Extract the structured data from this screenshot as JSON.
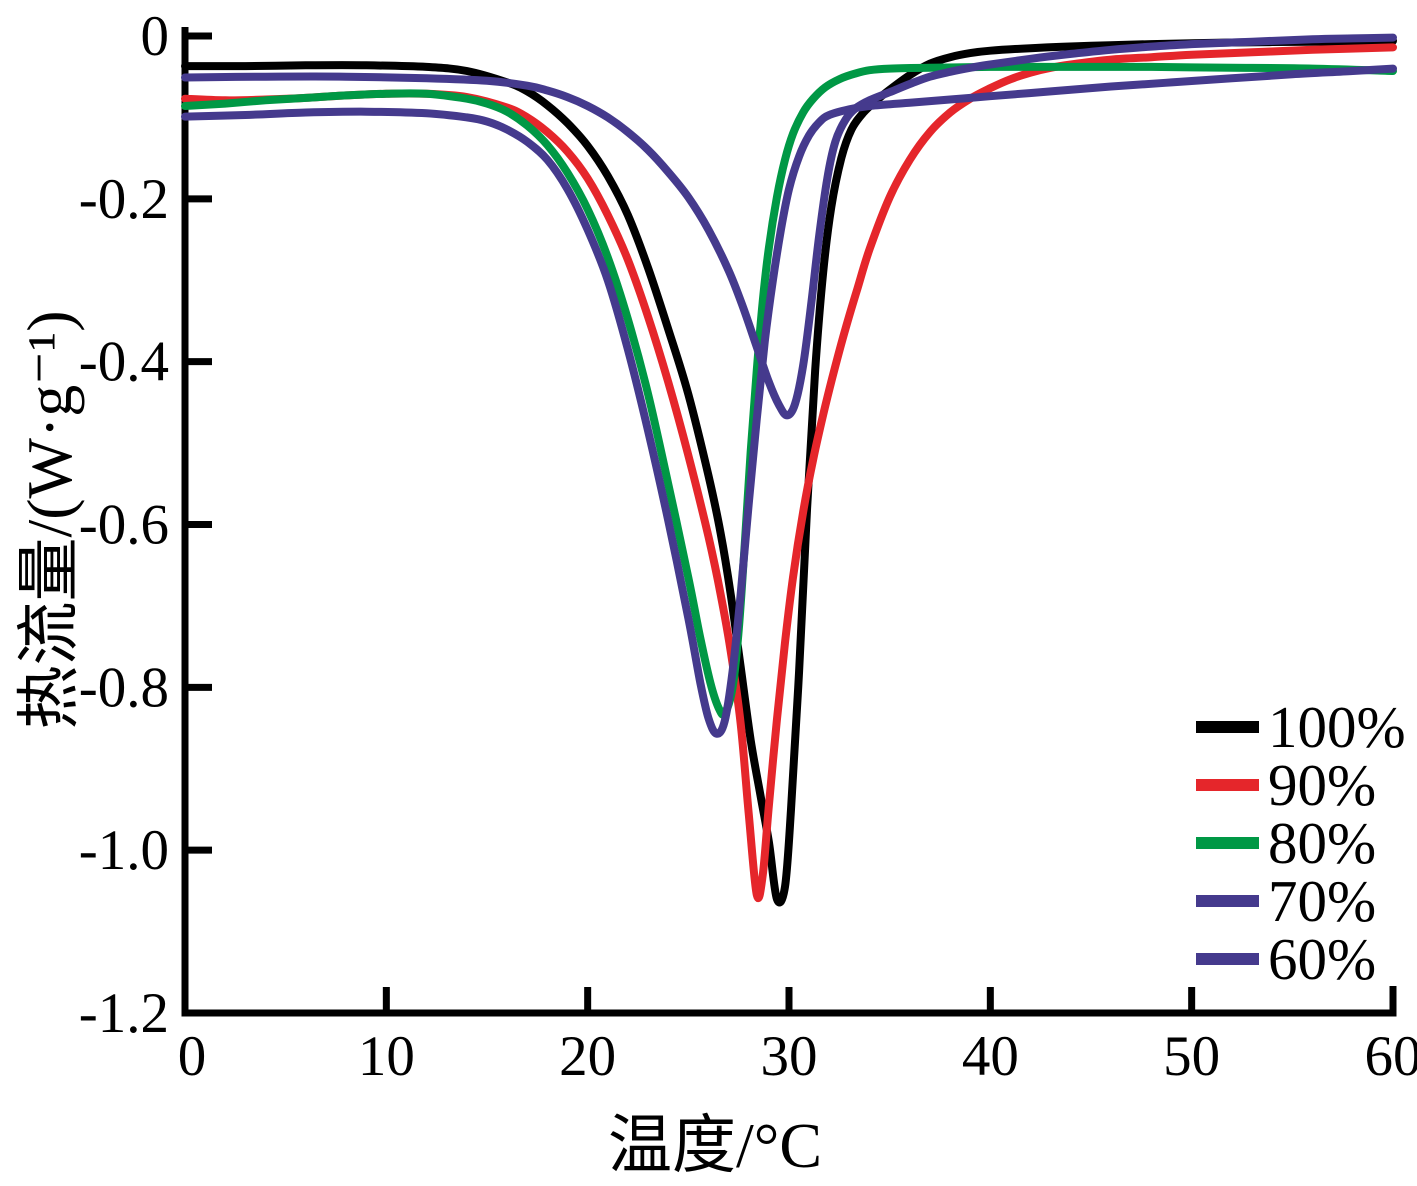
{
  "chart_data": {
    "type": "line",
    "title": "",
    "xlabel": "温度/°C",
    "ylabel": "热流量/(W·g⁻¹)",
    "xlim": [
      0,
      60
    ],
    "ylim": [
      -1.2,
      0
    ],
    "xticks": [
      0,
      10,
      20,
      30,
      40,
      50,
      60
    ],
    "yticks": [
      0,
      -0.2,
      -0.4,
      -0.6,
      -0.8,
      -1.0,
      -1.2
    ],
    "ytick_labels": [
      "0",
      "-0.2",
      "-0.4",
      "-0.6",
      "-0.8",
      "-1.0",
      "-1.2"
    ],
    "grid": false,
    "legend_position": "lower right",
    "axis_color": "#000000",
    "series": [
      {
        "name": "100%",
        "color": "#000000",
        "peak_temp_c": 29.4,
        "peak_heatflow": -1.06,
        "points": [
          [
            0,
            -0.037
          ],
          [
            3,
            -0.037
          ],
          [
            6,
            -0.036
          ],
          [
            9,
            -0.036
          ],
          [
            12,
            -0.038
          ],
          [
            14,
            -0.043
          ],
          [
            16,
            -0.057
          ],
          [
            17,
            -0.068
          ],
          [
            18,
            -0.085
          ],
          [
            19,
            -0.107
          ],
          [
            20,
            -0.135
          ],
          [
            21,
            -0.172
          ],
          [
            22,
            -0.22
          ],
          [
            23,
            -0.285
          ],
          [
            24,
            -0.36
          ],
          [
            25,
            -0.44
          ],
          [
            26,
            -0.54
          ],
          [
            26.6,
            -0.61
          ],
          [
            27.1,
            -0.685
          ],
          [
            27.6,
            -0.775
          ],
          [
            28.1,
            -0.865
          ],
          [
            28.6,
            -0.935
          ],
          [
            29.0,
            -0.99
          ],
          [
            29.4,
            -1.06
          ],
          [
            29.8,
            -1.045
          ],
          [
            30.1,
            -0.95
          ],
          [
            30.5,
            -0.78
          ],
          [
            30.9,
            -0.58
          ],
          [
            31.3,
            -0.41
          ],
          [
            31.7,
            -0.29
          ],
          [
            32.1,
            -0.21
          ],
          [
            32.6,
            -0.15
          ],
          [
            33.1,
            -0.115
          ],
          [
            33.7,
            -0.094
          ],
          [
            34.4,
            -0.078
          ],
          [
            35,
            -0.066
          ],
          [
            36,
            -0.048
          ],
          [
            37,
            -0.034
          ],
          [
            38,
            -0.026
          ],
          [
            39,
            -0.021
          ],
          [
            40,
            -0.018
          ],
          [
            42,
            -0.015
          ],
          [
            45,
            -0.012
          ],
          [
            48,
            -0.01
          ],
          [
            52,
            -0.008
          ],
          [
            56,
            -0.007
          ],
          [
            60,
            -0.006
          ]
        ]
      },
      {
        "name": "90%",
        "color": "#e5262b",
        "peak_temp_c": 28.4,
        "peak_heatflow": -1.06,
        "points": [
          [
            0,
            -0.077
          ],
          [
            2,
            -0.079
          ],
          [
            4,
            -0.078
          ],
          [
            6,
            -0.076
          ],
          [
            8,
            -0.073
          ],
          [
            10,
            -0.071
          ],
          [
            12,
            -0.071
          ],
          [
            14,
            -0.075
          ],
          [
            16,
            -0.088
          ],
          [
            17,
            -0.1
          ],
          [
            18,
            -0.118
          ],
          [
            19,
            -0.142
          ],
          [
            20,
            -0.175
          ],
          [
            21,
            -0.22
          ],
          [
            22,
            -0.275
          ],
          [
            23,
            -0.345
          ],
          [
            24,
            -0.425
          ],
          [
            25,
            -0.515
          ],
          [
            26,
            -0.615
          ],
          [
            26.6,
            -0.685
          ],
          [
            27.1,
            -0.755
          ],
          [
            27.6,
            -0.845
          ],
          [
            28.0,
            -0.955
          ],
          [
            28.4,
            -1.055
          ],
          [
            28.7,
            -1.03
          ],
          [
            29.0,
            -0.945
          ],
          [
            29.4,
            -0.84
          ],
          [
            29.8,
            -0.745
          ],
          [
            30.2,
            -0.665
          ],
          [
            30.7,
            -0.585
          ],
          [
            31.2,
            -0.52
          ],
          [
            31.7,
            -0.465
          ],
          [
            32.2,
            -0.415
          ],
          [
            32.8,
            -0.36
          ],
          [
            33.4,
            -0.31
          ],
          [
            34,
            -0.262
          ],
          [
            35,
            -0.198
          ],
          [
            36,
            -0.152
          ],
          [
            37,
            -0.118
          ],
          [
            38,
            -0.094
          ],
          [
            39,
            -0.077
          ],
          [
            40,
            -0.064
          ],
          [
            41,
            -0.053
          ],
          [
            42,
            -0.045
          ],
          [
            43,
            -0.039
          ],
          [
            44,
            -0.035
          ],
          [
            46,
            -0.029
          ],
          [
            48,
            -0.026
          ],
          [
            50,
            -0.023
          ],
          [
            53,
            -0.02
          ],
          [
            56,
            -0.017
          ],
          [
            60,
            -0.014
          ]
        ]
      },
      {
        "name": "80%",
        "color": "#009845",
        "peak_temp_c": 26.7,
        "peak_heatflow": -0.83,
        "points": [
          [
            0,
            -0.086
          ],
          [
            2,
            -0.083
          ],
          [
            4,
            -0.079
          ],
          [
            6,
            -0.076
          ],
          [
            8,
            -0.073
          ],
          [
            10,
            -0.071
          ],
          [
            12,
            -0.071
          ],
          [
            14,
            -0.077
          ],
          [
            15,
            -0.083
          ],
          [
            16,
            -0.093
          ],
          [
            17,
            -0.11
          ],
          [
            18,
            -0.134
          ],
          [
            19,
            -0.168
          ],
          [
            20,
            -0.213
          ],
          [
            21,
            -0.272
          ],
          [
            22,
            -0.348
          ],
          [
            23,
            -0.44
          ],
          [
            24,
            -0.55
          ],
          [
            25,
            -0.665
          ],
          [
            25.6,
            -0.74
          ],
          [
            26.1,
            -0.795
          ],
          [
            26.5,
            -0.825
          ],
          [
            26.8,
            -0.832
          ],
          [
            27.2,
            -0.8
          ],
          [
            27.5,
            -0.73
          ],
          [
            27.8,
            -0.625
          ],
          [
            28.1,
            -0.51
          ],
          [
            28.4,
            -0.41
          ],
          [
            28.7,
            -0.325
          ],
          [
            29.0,
            -0.26
          ],
          [
            29.4,
            -0.198
          ],
          [
            29.8,
            -0.152
          ],
          [
            30.2,
            -0.12
          ],
          [
            30.7,
            -0.094
          ],
          [
            31.2,
            -0.077
          ],
          [
            31.8,
            -0.063
          ],
          [
            32.5,
            -0.053
          ],
          [
            33.3,
            -0.046
          ],
          [
            34,
            -0.042
          ],
          [
            35,
            -0.04
          ],
          [
            37,
            -0.039
          ],
          [
            40,
            -0.038
          ],
          [
            44,
            -0.038
          ],
          [
            48,
            -0.038
          ],
          [
            52,
            -0.039
          ],
          [
            56,
            -0.04
          ],
          [
            60,
            -0.043
          ]
        ]
      },
      {
        "name": "70%",
        "color": "#453a8d",
        "peak_temp_c": 29.9,
        "peak_heatflow": -0.47,
        "points": [
          [
            0,
            -0.051
          ],
          [
            4,
            -0.05
          ],
          [
            8,
            -0.05
          ],
          [
            12,
            -0.052
          ],
          [
            15,
            -0.055
          ],
          [
            17,
            -0.061
          ],
          [
            18,
            -0.067
          ],
          [
            19,
            -0.075
          ],
          [
            20,
            -0.086
          ],
          [
            21,
            -0.1
          ],
          [
            22,
            -0.118
          ],
          [
            23,
            -0.14
          ],
          [
            24,
            -0.167
          ],
          [
            25,
            -0.198
          ],
          [
            26,
            -0.238
          ],
          [
            27,
            -0.288
          ],
          [
            27.7,
            -0.332
          ],
          [
            28.4,
            -0.382
          ],
          [
            29.0,
            -0.425
          ],
          [
            29.5,
            -0.453
          ],
          [
            29.9,
            -0.466
          ],
          [
            30.3,
            -0.452
          ],
          [
            30.7,
            -0.405
          ],
          [
            31.1,
            -0.33
          ],
          [
            31.5,
            -0.245
          ],
          [
            31.9,
            -0.175
          ],
          [
            32.3,
            -0.13
          ],
          [
            32.8,
            -0.103
          ],
          [
            33.3,
            -0.089
          ],
          [
            34,
            -0.079
          ],
          [
            35,
            -0.069
          ],
          [
            36,
            -0.059
          ],
          [
            37,
            -0.05
          ],
          [
            38,
            -0.044
          ],
          [
            39,
            -0.039
          ],
          [
            40,
            -0.035
          ],
          [
            42,
            -0.028
          ],
          [
            44,
            -0.022
          ],
          [
            46,
            -0.017
          ],
          [
            48,
            -0.013
          ],
          [
            50,
            -0.01
          ],
          [
            53,
            -0.007
          ],
          [
            56,
            -0.004
          ],
          [
            58,
            -0.003
          ],
          [
            60,
            -0.002
          ]
        ]
      },
      {
        "name": "60%",
        "color": "#453a8d",
        "peak_temp_c": 26.4,
        "peak_heatflow": -0.86,
        "points": [
          [
            0,
            -0.099
          ],
          [
            3,
            -0.097
          ],
          [
            6,
            -0.094
          ],
          [
            9,
            -0.093
          ],
          [
            12,
            -0.095
          ],
          [
            14,
            -0.1
          ],
          [
            15,
            -0.105
          ],
          [
            16,
            -0.115
          ],
          [
            17,
            -0.13
          ],
          [
            18,
            -0.152
          ],
          [
            19,
            -0.188
          ],
          [
            20,
            -0.238
          ],
          [
            21,
            -0.3
          ],
          [
            22,
            -0.385
          ],
          [
            23,
            -0.485
          ],
          [
            24,
            -0.595
          ],
          [
            25,
            -0.715
          ],
          [
            25.6,
            -0.795
          ],
          [
            26.0,
            -0.838
          ],
          [
            26.4,
            -0.857
          ],
          [
            26.8,
            -0.842
          ],
          [
            27.2,
            -0.78
          ],
          [
            27.6,
            -0.685
          ],
          [
            28.0,
            -0.575
          ],
          [
            28.4,
            -0.47
          ],
          [
            28.8,
            -0.375
          ],
          [
            29.2,
            -0.3
          ],
          [
            29.6,
            -0.238
          ],
          [
            30.0,
            -0.188
          ],
          [
            30.5,
            -0.148
          ],
          [
            31.0,
            -0.122
          ],
          [
            31.5,
            -0.106
          ],
          [
            32,
            -0.097
          ],
          [
            33,
            -0.09
          ],
          [
            34,
            -0.086
          ],
          [
            36,
            -0.082
          ],
          [
            38,
            -0.078
          ],
          [
            40,
            -0.074
          ],
          [
            43,
            -0.068
          ],
          [
            46,
            -0.062
          ],
          [
            49,
            -0.057
          ],
          [
            52,
            -0.052
          ],
          [
            55,
            -0.047
          ],
          [
            58,
            -0.043
          ],
          [
            60,
            -0.04
          ]
        ]
      }
    ]
  }
}
